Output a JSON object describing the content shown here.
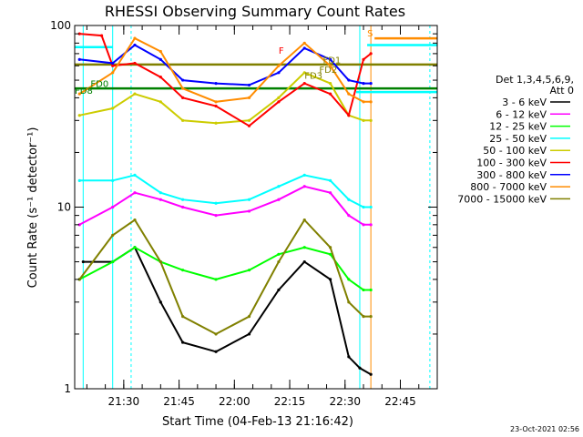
{
  "chart_data": {
    "type": "line",
    "title": "RHESSI Observing Summary Count Rates",
    "xlabel": "Start Time (04-Feb-13 21:16:42)",
    "ylabel": "Count Rate (s⁻¹ detector⁻¹)",
    "yscale": "log",
    "ylim": [
      1,
      100
    ],
    "y_ticks": [
      "1",
      "10",
      "100"
    ],
    "x_ticks": [
      "21:30",
      "21:45",
      "22:00",
      "22:15",
      "22:30",
      "22:45"
    ],
    "xlim_minutes": [
      "21:16:42",
      "22:55:00"
    ],
    "legend_header": [
      "Det 1,3,4,5,6,9,",
      "Att 0"
    ],
    "series": [
      {
        "name": "3 - 6 keV",
        "color": "#000000",
        "x": [
          "21:19",
          "21:27",
          "21:33",
          "21:40",
          "21:46",
          "21:55",
          "22:04",
          "22:12",
          "22:19",
          "22:26",
          "22:31",
          "22:34",
          "22:37"
        ],
        "values": [
          5,
          5,
          6,
          3,
          1.8,
          1.6,
          2.0,
          3.5,
          5,
          4,
          1.5,
          1.3,
          1.2
        ]
      },
      {
        "name": "6 - 12 keV",
        "color": "#ff00ff",
        "x": [
          "21:18",
          "21:27",
          "21:33",
          "21:40",
          "21:46",
          "21:55",
          "22:04",
          "22:12",
          "22:19",
          "22:26",
          "22:31",
          "22:35",
          "22:37"
        ],
        "values": [
          8,
          10,
          12,
          11,
          10,
          9,
          9.5,
          11,
          13,
          12,
          9,
          8,
          8
        ]
      },
      {
        "name": "12 - 25 keV",
        "color": "#00ff00",
        "x": [
          "21:18",
          "21:27",
          "21:33",
          "21:40",
          "21:46",
          "21:55",
          "22:04",
          "22:12",
          "22:19",
          "22:26",
          "22:31",
          "22:35",
          "22:37"
        ],
        "values": [
          4,
          5,
          6,
          5,
          4.5,
          4,
          4.5,
          5.5,
          6,
          5.5,
          4,
          3.5,
          3.5
        ]
      },
      {
        "name": "25 - 50 keV",
        "color": "#00ffff",
        "x": [
          "21:18",
          "21:27",
          "21:33",
          "21:40",
          "21:46",
          "21:55",
          "22:04",
          "22:12",
          "22:19",
          "22:26",
          "22:31",
          "22:35",
          "22:37"
        ],
        "values": [
          14,
          14,
          15,
          12,
          11,
          10.5,
          11,
          13,
          15,
          14,
          11,
          10,
          10
        ]
      },
      {
        "name": "50 - 100 keV",
        "color": "#cccc00",
        "x": [
          "21:18",
          "21:27",
          "21:33",
          "21:40",
          "21:46",
          "21:55",
          "22:04",
          "22:12",
          "22:19",
          "22:26",
          "22:31",
          "22:35",
          "22:37"
        ],
        "values": [
          32,
          35,
          42,
          38,
          30,
          29,
          30,
          40,
          55,
          48,
          32,
          30,
          30
        ]
      },
      {
        "name": "100 - 300 keV",
        "color": "#ff0000",
        "x": [
          "21:18",
          "21:24",
          "21:27",
          "21:33",
          "21:40",
          "21:46",
          "21:55",
          "22:04",
          "22:12",
          "22:19",
          "22:26",
          "22:31",
          "22:35",
          "22:37"
        ],
        "values": [
          90,
          88,
          60,
          62,
          52,
          40,
          36,
          28,
          38,
          48,
          42,
          32,
          65,
          70
        ]
      },
      {
        "name": "300 - 800 keV",
        "color": "#0000ff",
        "x": [
          "21:18",
          "21:27",
          "21:33",
          "21:40",
          "21:46",
          "21:55",
          "22:04",
          "22:12",
          "22:19",
          "22:26",
          "22:31",
          "22:35",
          "22:37"
        ],
        "values": [
          65,
          62,
          78,
          65,
          50,
          48,
          47,
          55,
          75,
          65,
          50,
          48,
          48
        ]
      },
      {
        "name": "800 - 7000 keV",
        "color": "#ff8c00",
        "x": [
          "21:18",
          "21:27",
          "21:33",
          "21:40",
          "21:46",
          "21:55",
          "22:04",
          "22:12",
          "22:19",
          "22:26",
          "22:31",
          "22:35",
          "22:37"
        ],
        "values": [
          42,
          55,
          85,
          72,
          45,
          38,
          40,
          60,
          80,
          60,
          42,
          38,
          38
        ]
      },
      {
        "name": "7000 - 15000 keV",
        "color": "#808000",
        "x": [
          "21:18",
          "21:27",
          "21:33",
          "21:40",
          "21:46",
          "21:55",
          "22:04",
          "22:12",
          "22:19",
          "22:26",
          "22:31",
          "22:35",
          "22:37"
        ],
        "values": [
          4,
          7,
          8.5,
          5,
          2.5,
          2,
          2.5,
          5,
          8.5,
          6,
          3,
          2.5,
          2.5
        ]
      }
    ],
    "flag_lines": [
      {
        "color": "#00ffff",
        "x": [
          "21:16:42",
          "21:27"
        ],
        "value": 76
      },
      {
        "color": "#808000",
        "x": [
          "21:16:42",
          "22:55"
        ],
        "value": 61
      },
      {
        "color": "#008000",
        "x": [
          "21:16:42",
          "22:55"
        ],
        "value": 45
      },
      {
        "color": "#00ffff",
        "x": [
          "22:36",
          "22:55"
        ],
        "value": 78
      },
      {
        "color": "#ff8c00",
        "x": [
          "22:38",
          "22:55"
        ],
        "value": 85
      },
      {
        "color": "#00ffff",
        "x": [
          "22:33",
          "22:55"
        ],
        "value": 43
      }
    ],
    "annotations": [
      {
        "text": "S",
        "color": "#ff8c00",
        "x": "22:36",
        "value": 87
      },
      {
        "text": "F",
        "color": "#ff0000",
        "x": "22:12",
        "value": 70
      },
      {
        "text": "FD1",
        "color": "#808000",
        "x": "22:24",
        "value": 62
      },
      {
        "text": "FD2",
        "color": "#808000",
        "x": "22:23",
        "value": 55
      },
      {
        "text": "FD3",
        "color": "#808000",
        "x": "22:19",
        "value": 51
      },
      {
        "text": "FD8",
        "color": "#008000",
        "x": "21:16:42",
        "value": 42
      },
      {
        "text": "FD0",
        "color": "#008000",
        "x": "21:21",
        "value": 46
      }
    ],
    "vlines": [
      {
        "color": "#00ffff",
        "x": "21:19",
        "dashed": false
      },
      {
        "color": "#00ffff",
        "x": "21:27",
        "dashed": false
      },
      {
        "color": "#00ffff",
        "x": "21:32",
        "dashed": true
      },
      {
        "color": "#00ffff",
        "x": "22:34",
        "dashed": false
      },
      {
        "color": "#ff8c00",
        "x": "22:37",
        "dashed": false
      },
      {
        "color": "#00ffff",
        "x": "22:53",
        "dashed": true
      }
    ],
    "grid": false,
    "legend_position": "right"
  },
  "footer": {
    "timestamp": "23-Oct-2021 02:56"
  }
}
